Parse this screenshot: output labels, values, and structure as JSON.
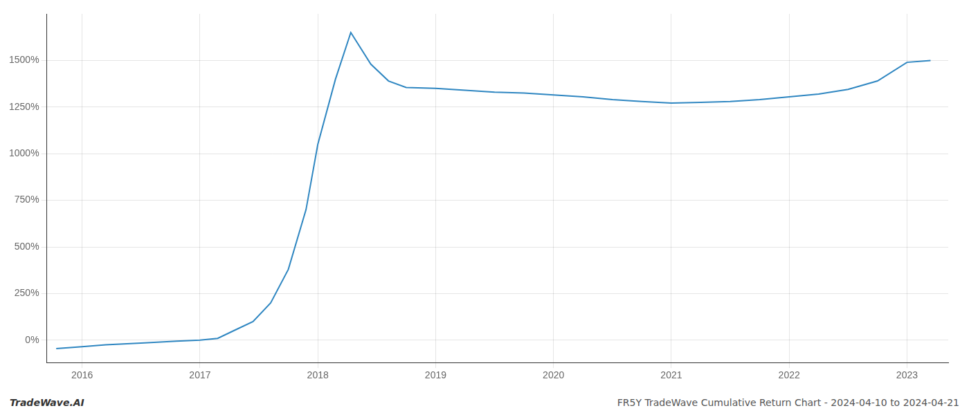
{
  "chart_data": {
    "type": "line",
    "x": [
      2015.78,
      2016.0,
      2016.2,
      2016.5,
      2016.8,
      2017.0,
      2017.15,
      2017.3,
      2017.45,
      2017.6,
      2017.75,
      2017.9,
      2018.0,
      2018.15,
      2018.28,
      2018.45,
      2018.6,
      2018.75,
      2019.0,
      2019.25,
      2019.5,
      2019.75,
      2020.0,
      2020.25,
      2020.5,
      2020.75,
      2021.0,
      2021.25,
      2021.5,
      2021.75,
      2022.0,
      2022.25,
      2022.5,
      2022.75,
      2023.0,
      2023.2
    ],
    "values": [
      -45,
      -35,
      -25,
      -15,
      -5,
      0,
      10,
      55,
      100,
      200,
      380,
      700,
      1050,
      1400,
      1650,
      1480,
      1390,
      1355,
      1350,
      1340,
      1330,
      1325,
      1315,
      1305,
      1290,
      1280,
      1272,
      1275,
      1280,
      1290,
      1305,
      1320,
      1345,
      1390,
      1490,
      1500
    ],
    "color": "#2e86c1",
    "xlim": [
      2015.7,
      2023.35
    ],
    "ylim": [
      -120,
      1750
    ],
    "xticks": [
      2016,
      2017,
      2018,
      2019,
      2020,
      2021,
      2022,
      2023
    ],
    "yticks": [
      {
        "value": 0,
        "label": "0%"
      },
      {
        "value": 250,
        "label": "250%"
      },
      {
        "value": 500,
        "label": "500%"
      },
      {
        "value": 750,
        "label": "750%"
      },
      {
        "value": 1000,
        "label": "1000%"
      },
      {
        "value": 1250,
        "label": "1250%"
      },
      {
        "value": 1500,
        "label": "1500%"
      }
    ],
    "grid": true,
    "annotations": [
      "TradeWave.AI",
      "FR5Y TradeWave Cumulative Return Chart - 2024-04-10 to 2024-04-21"
    ]
  }
}
